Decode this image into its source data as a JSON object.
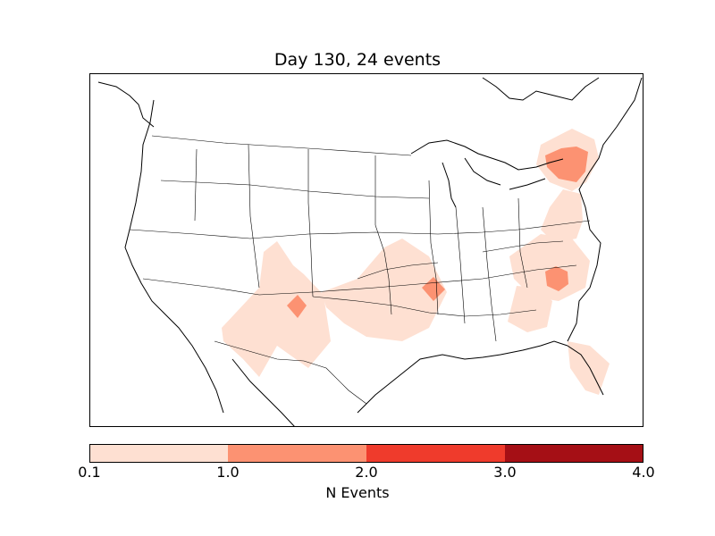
{
  "title": "Day 130, 24 events",
  "colorbar": {
    "label": "N Events",
    "ticks": [
      "0.1",
      "1.0",
      "2.0",
      "3.0",
      "4.0"
    ],
    "bins": [
      {
        "from": 0.1,
        "to": 1.0,
        "color": "#fee0d2"
      },
      {
        "from": 1.0,
        "to": 2.0,
        "color": "#fc9272"
      },
      {
        "from": 2.0,
        "to": 3.0,
        "color": "#ef3b2c"
      },
      {
        "from": 3.0,
        "to": 4.0,
        "color": "#a50f15"
      }
    ]
  },
  "map": {
    "region": "Continental United States and southern Canada",
    "event_areas": [
      {
        "name": "new-england-ny",
        "level": "0.1-1.0"
      },
      {
        "name": "new-york-core",
        "level": "1.0-2.0"
      },
      {
        "name": "mid-atlantic",
        "level": "0.1-1.0"
      },
      {
        "name": "carolinas",
        "level": "0.1-1.0"
      },
      {
        "name": "carolinas-core",
        "level": "1.0-2.0"
      },
      {
        "name": "georgia",
        "level": "0.1-1.0"
      },
      {
        "name": "florida",
        "level": "0.1-1.0"
      },
      {
        "name": "southern-plains",
        "level": "0.1-1.0"
      },
      {
        "name": "arkansas-core",
        "level": "1.0-2.0"
      },
      {
        "name": "southwest",
        "level": "0.1-1.0"
      },
      {
        "name": "new-mexico-core",
        "level": "1.0-2.0"
      }
    ]
  }
}
